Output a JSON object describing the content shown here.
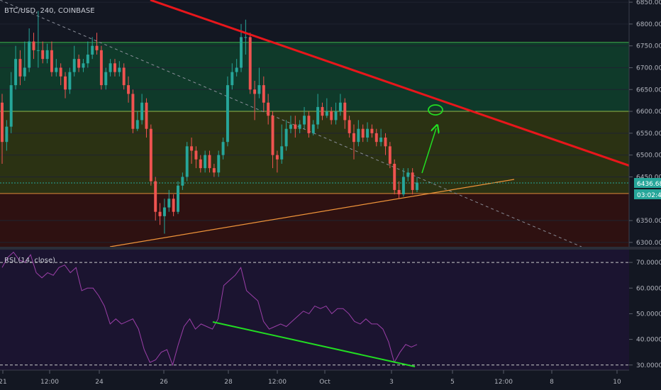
{
  "chart_data": [
    {
      "type": "candlestick",
      "title": "BTC/USD, 240, COINBASE",
      "ylim": [
        6290,
        6855
      ],
      "y_ticks": [
        "6850.00",
        "6800.00",
        "6750.00",
        "6700.00",
        "6650.00",
        "6600.00",
        "6550.00",
        "6500.00",
        "6450.00",
        "6350.00",
        "6300.00"
      ],
      "last_price": "6436.68",
      "countdown": "03:02:42",
      "colors": {
        "up": "#26a69a",
        "down": "#ef5350"
      },
      "zones": [
        {
          "from": 6600,
          "to": 6758,
          "color": "#0f3a2a"
        },
        {
          "from": 6412,
          "to": 6600,
          "color": "#2b3213"
        },
        {
          "from": 6290,
          "to": 6412,
          "color": "#2e1111"
        }
      ],
      "h_lines": [
        6758,
        6600,
        6412
      ],
      "candles": [
        [
          6620,
          6530,
          6640,
          6480
        ],
        [
          6530,
          6565,
          6580,
          6510
        ],
        [
          6565,
          6660,
          6690,
          6550
        ],
        [
          6660,
          6720,
          6750,
          6650
        ],
        [
          6720,
          6680,
          6740,
          6660
        ],
        [
          6680,
          6700,
          6760,
          6670
        ],
        [
          6700,
          6760,
          6790,
          6690
        ],
        [
          6760,
          6740,
          6780,
          6720
        ],
        [
          6740,
          6740,
          6830,
          6700
        ],
        [
          6740,
          6720,
          6760,
          6710
        ],
        [
          6720,
          6740,
          6755,
          6710
        ],
        [
          6740,
          6690,
          6760,
          6680
        ],
        [
          6690,
          6700,
          6720,
          6680
        ],
        [
          6700,
          6680,
          6710,
          6660
        ],
        [
          6680,
          6650,
          6690,
          6630
        ],
        [
          6650,
          6690,
          6700,
          6640
        ],
        [
          6690,
          6720,
          6750,
          6680
        ],
        [
          6720,
          6700,
          6730,
          6690
        ],
        [
          6700,
          6710,
          6720,
          6690
        ],
        [
          6710,
          6730,
          6760,
          6700
        ],
        [
          6730,
          6750,
          6770,
          6720
        ],
        [
          6750,
          6740,
          6780,
          6730
        ],
        [
          6740,
          6660,
          6750,
          6650
        ],
        [
          6660,
          6690,
          6700,
          6650
        ],
        [
          6690,
          6710,
          6720,
          6680
        ],
        [
          6710,
          6690,
          6720,
          6680
        ],
        [
          6690,
          6700,
          6715,
          6680
        ],
        [
          6700,
          6660,
          6710,
          6650
        ],
        [
          6660,
          6640,
          6680,
          6620
        ],
        [
          6640,
          6560,
          6650,
          6550
        ],
        [
          6560,
          6580,
          6600,
          6555
        ],
        [
          6580,
          6620,
          6640,
          6570
        ],
        [
          6620,
          6560,
          6630,
          6540
        ],
        [
          6560,
          6440,
          6570,
          6430
        ],
        [
          6440,
          6370,
          6450,
          6350
        ],
        [
          6370,
          6360,
          6390,
          6340
        ],
        [
          6360,
          6380,
          6400,
          6320
        ],
        [
          6380,
          6400,
          6420,
          6370
        ],
        [
          6400,
          6370,
          6410,
          6360
        ],
        [
          6370,
          6430,
          6440,
          6365
        ],
        [
          6430,
          6450,
          6460,
          6420
        ],
        [
          6450,
          6520,
          6530,
          6440
        ],
        [
          6520,
          6510,
          6540,
          6480
        ],
        [
          6510,
          6490,
          6520,
          6470
        ],
        [
          6490,
          6470,
          6500,
          6460
        ],
        [
          6470,
          6500,
          6510,
          6460
        ],
        [
          6500,
          6470,
          6510,
          6460
        ],
        [
          6470,
          6460,
          6480,
          6450
        ],
        [
          6460,
          6500,
          6510,
          6450
        ],
        [
          6500,
          6530,
          6540,
          6490
        ],
        [
          6530,
          6660,
          6680,
          6520
        ],
        [
          6660,
          6690,
          6710,
          6650
        ],
        [
          6690,
          6700,
          6720,
          6680
        ],
        [
          6700,
          6770,
          6800,
          6690
        ],
        [
          6770,
          6770,
          6810,
          6730
        ],
        [
          6770,
          6650,
          6780,
          6640
        ],
        [
          6650,
          6640,
          6670,
          6580
        ],
        [
          6640,
          6660,
          6700,
          6630
        ],
        [
          6660,
          6620,
          6680,
          6600
        ],
        [
          6620,
          6590,
          6640,
          6570
        ],
        [
          6590,
          6500,
          6600,
          6470
        ],
        [
          6500,
          6490,
          6510,
          6460
        ],
        [
          6490,
          6520,
          6570,
          6480
        ],
        [
          6520,
          6560,
          6580,
          6510
        ],
        [
          6560,
          6570,
          6590,
          6550
        ],
        [
          6570,
          6560,
          6590,
          6540
        ],
        [
          6560,
          6570,
          6580,
          6550
        ],
        [
          6570,
          6590,
          6610,
          6560
        ],
        [
          6590,
          6550,
          6600,
          6540
        ],
        [
          6550,
          6570,
          6580,
          6545
        ],
        [
          6570,
          6610,
          6640,
          6560
        ],
        [
          6610,
          6590,
          6620,
          6580
        ],
        [
          6590,
          6600,
          6630,
          6585
        ],
        [
          6600,
          6580,
          6610,
          6570
        ],
        [
          6580,
          6600,
          6620,
          6570
        ],
        [
          6600,
          6620,
          6640,
          6590
        ],
        [
          6620,
          6580,
          6630,
          6560
        ],
        [
          6580,
          6550,
          6590,
          6540
        ],
        [
          6550,
          6530,
          6570,
          6490
        ],
        [
          6530,
          6560,
          6580,
          6520
        ],
        [
          6560,
          6540,
          6570,
          6530
        ],
        [
          6540,
          6560,
          6575,
          6530
        ],
        [
          6560,
          6550,
          6570,
          6540
        ],
        [
          6550,
          6530,
          6560,
          6520
        ],
        [
          6530,
          6540,
          6560,
          6520
        ],
        [
          6540,
          6520,
          6550,
          6500
        ],
        [
          6520,
          6480,
          6530,
          6470
        ],
        [
          6480,
          6420,
          6490,
          6410
        ],
        [
          6420,
          6410,
          6440,
          6400
        ],
        [
          6410,
          6450,
          6470,
          6405
        ],
        [
          6450,
          6460,
          6470,
          6440
        ],
        [
          6460,
          6420,
          6470,
          6410
        ],
        [
          6420,
          6437,
          6450,
          6415
        ]
      ]
    },
    {
      "type": "line",
      "title": "RSI (14, close)",
      "ylim": [
        28,
        75
      ],
      "y_ticks": [
        "70.0000",
        "60.0000",
        "50.0000",
        "40.0000",
        "30.0000"
      ],
      "x_labels": [
        "21",
        "12:00",
        "24",
        "26",
        "28",
        "12:00",
        "Oct",
        "3",
        "5",
        "12:00",
        "8",
        "10"
      ],
      "series": [
        {
          "color": "#9b3fa8",
          "values": [
            68,
            72,
            74,
            71,
            70,
            73,
            66,
            64,
            66,
            65,
            68,
            69,
            66,
            68,
            59,
            60,
            60,
            57,
            53,
            46,
            48,
            46,
            47,
            48,
            44,
            36,
            31,
            32,
            35,
            36,
            30,
            38,
            45,
            48,
            44,
            46,
            45,
            44,
            48,
            61,
            63,
            65,
            68,
            59,
            57,
            55,
            47,
            44,
            45,
            46,
            45,
            47,
            49,
            51,
            50,
            53,
            52,
            53,
            50,
            52,
            52,
            50,
            47,
            46,
            48,
            46,
            46,
            44,
            39,
            31,
            35,
            38,
            37,
            38
          ]
        }
      ]
    }
  ]
}
